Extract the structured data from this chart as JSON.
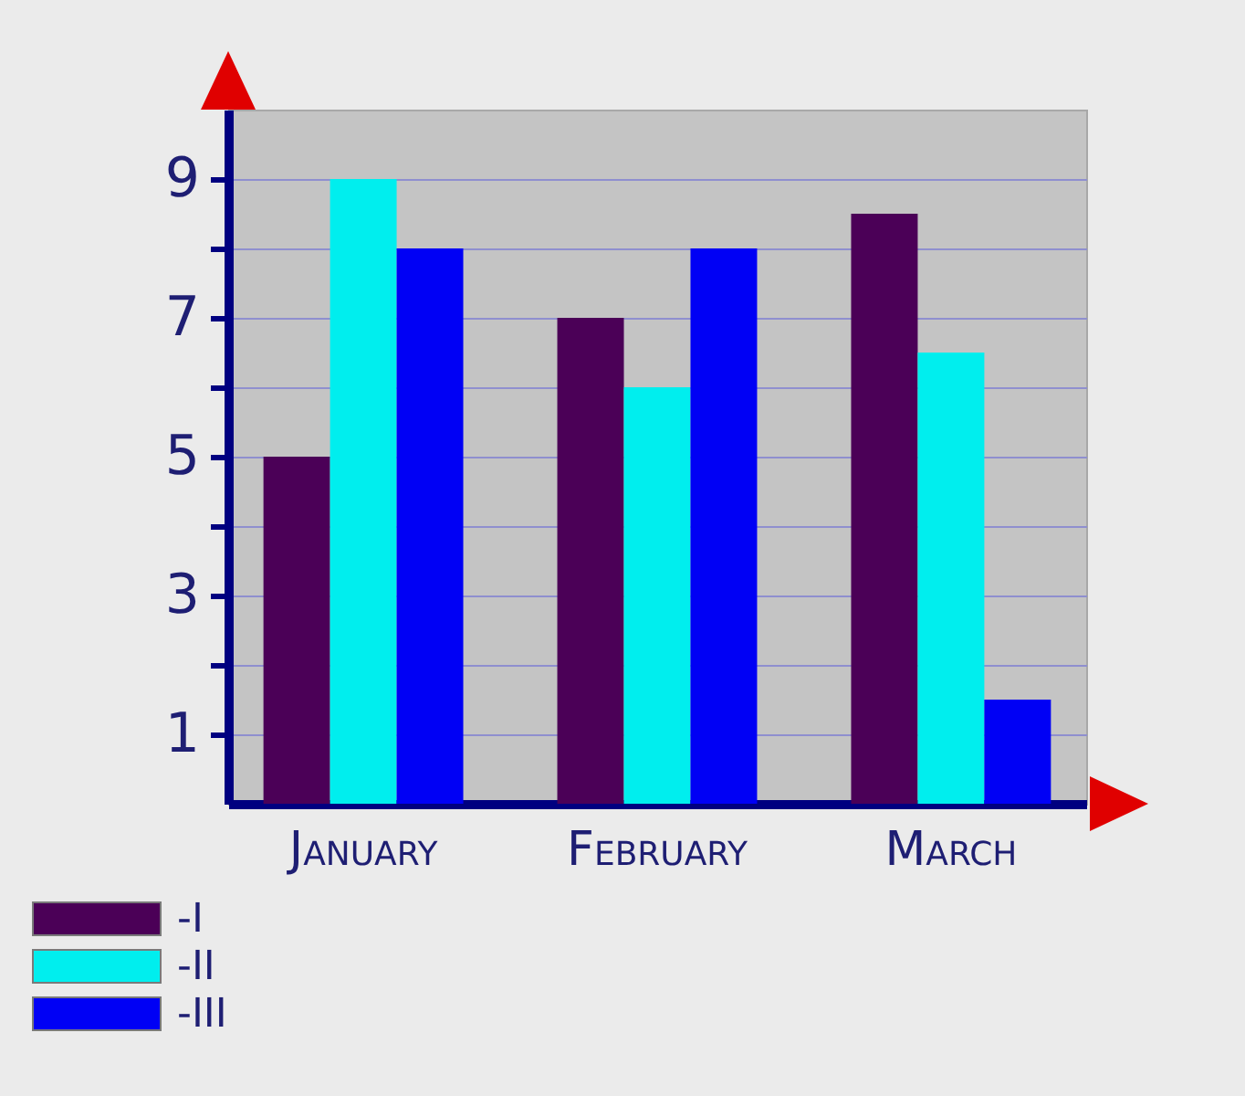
{
  "chart_data": {
    "type": "bar",
    "categories": [
      "January",
      "February",
      "March"
    ],
    "series": [
      {
        "name": "-I",
        "color": "#4b0057",
        "values": [
          5,
          7,
          8.5
        ]
      },
      {
        "name": "-II",
        "color": "#00eeee",
        "values": [
          9,
          6,
          6.5
        ]
      },
      {
        "name": "-III",
        "color": "#0000f5",
        "values": [
          8,
          8,
          1.5
        ]
      }
    ],
    "ylim": [
      0,
      10
    ],
    "yticks": [
      1,
      {
        "value": 2,
        "label": null
      },
      3,
      {
        "value": 4,
        "label": null
      },
      5,
      {
        "value": 6,
        "label": null
      },
      7,
      {
        "value": 8,
        "label": null
      },
      9
    ],
    "grid": "y",
    "legend": "bottom left"
  }
}
